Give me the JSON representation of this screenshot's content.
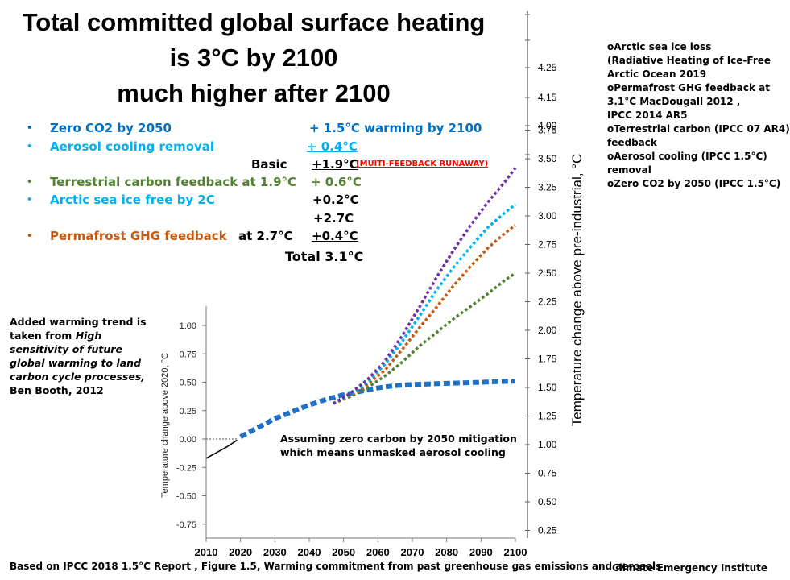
{
  "title": {
    "line1": "Total committed global surface heating",
    "line2": "is 3°C by 2100",
    "line3": "much higher after 2100"
  },
  "bullets": [
    {
      "label": "Zero CO2 by 2050",
      "value": "+ 1.5°C warming by 2100",
      "color": "#0070C0"
    },
    {
      "label": "Aerosol cooling removal",
      "value": "+ 0.4°C",
      "color": "#00B0F0"
    },
    {
      "label": "Terrestrial carbon feedback at 1.9°C",
      "value": "+ 0.6°C",
      "color": "#548235"
    },
    {
      "label": "Arctic sea ice free by 2C",
      "value": "+0.2°C",
      "color": "#00B0F0"
    },
    {
      "label": "Permafrost GHG  feedback",
      "at": "at 2.7°C",
      "value": "+0.4°C",
      "color": "#C55A11"
    }
  ],
  "basic": {
    "label": "Basic",
    "value": "+1.9°C",
    "note": "(MUlTI-FEEDBACK  RUNAWAY)",
    "note_color": "#FF0000"
  },
  "subtotal": "+2.7C",
  "total": "Total  3.1°C",
  "references": [
    "oArctic sea ice loss",
    " (Radiative Heating of Ice-Free",
    "Arctic Ocean 2019",
    "oPermafrost GHG  feedback at",
    "3.1°C MacDougall 2012 ,",
    " IPCC 2014  AR5",
    "oTerrestrial carbon (IPCC 07 AR4)",
    " feedback",
    "oAerosol cooling    (IPCC 1.5°C)",
    "removal",
    "oZero CO2 by 2050   (IPCC 1.5°C)"
  ],
  "side_note": {
    "normal": "Added warming trend is taken from ",
    "italic": "High sensitivity of future global  warming to land carbon cycle processes,",
    "author": " Ben Booth, 2012"
  },
  "annotation": {
    "line1": "Assuming zero carbon by 2050 mitigation",
    "line2": "which means unmasked aerosol cooling"
  },
  "footer": {
    "source": "Based on IPCC 2018   1.5°C Report , Figure 1.5, Warming commitment from past  greenhouse gas emissions  and aerosols",
    "credit": "Climate Emergency Institute"
  },
  "chart_data": {
    "type": "line",
    "xlabel": "",
    "left_ylabel": "Temperature change above 2020, °C",
    "right_ylabel": "Temperature change above pre-industrial, °C",
    "x_ticks": [
      "2010",
      "2020",
      "2030",
      "2040",
      "2050",
      "2060",
      "2070",
      "2080",
      "2090",
      "2100"
    ],
    "xlim": [
      2010,
      2100
    ],
    "left_y_ticks": [
      "1.00",
      "0.75",
      "0.50",
      "0.25",
      "0.00",
      "-0.25",
      "-0.50",
      "-0.75"
    ],
    "left_ylim": [
      -0.8,
      1.0
    ],
    "right_y_ticks": [
      "0.25",
      "0.50",
      "0.75",
      "1.00",
      "1.25",
      "1.50",
      "1.75",
      "2.00",
      "2.25",
      "2.50",
      "2.75",
      "3.00",
      "3.25",
      "3.50",
      "3.75",
      "4.00",
      "4.15",
      "4.25"
    ],
    "series": [
      {
        "color": "#000000",
        "style": "solid",
        "x": [
          2010,
          2013,
          2016,
          2019
        ],
        "y": [
          -0.17,
          -0.12,
          -0.07,
          -0.01
        ]
      },
      {
        "color": "#888888",
        "style": "dotted",
        "x": [
          2010,
          2019
        ],
        "y": [
          0.0,
          0.0
        ]
      },
      {
        "color": "#1F6FC5",
        "style": "dotted",
        "x": [
          2020,
          2025,
          2030,
          2035,
          2040,
          2045,
          2050,
          2055,
          2060,
          2065,
          2070,
          2075,
          2080,
          2085,
          2090,
          2095,
          2100
        ],
        "y": [
          0.02,
          0.1,
          0.18,
          0.24,
          0.3,
          0.35,
          0.39,
          0.42,
          0.45,
          0.47,
          0.48,
          0.485,
          0.49,
          0.495,
          0.5,
          0.505,
          0.51
        ]
      },
      {
        "color": "#548235",
        "style": "dotted",
        "x": [
          2047,
          2052,
          2057,
          2062,
          2067,
          2072,
          2077,
          2082,
          2087,
          2092,
          2097,
          2100
        ],
        "y": [
          1.36,
          1.42,
          1.5,
          1.6,
          1.72,
          1.86,
          1.98,
          2.1,
          2.21,
          2.32,
          2.44,
          2.5
        ]
      },
      {
        "color": "#C55A11",
        "style": "dotted",
        "x": [
          2047,
          2052,
          2057,
          2062,
          2067,
          2072,
          2077,
          2082,
          2087,
          2092,
          2097,
          2100
        ],
        "y": [
          1.36,
          1.43,
          1.53,
          1.65,
          1.83,
          2.02,
          2.2,
          2.39,
          2.56,
          2.72,
          2.85,
          2.92
        ]
      },
      {
        "color": "#00B0F0",
        "style": "dotted",
        "x": [
          2047,
          2052,
          2057,
          2062,
          2067,
          2072,
          2077,
          2082,
          2087,
          2092,
          2097,
          2100
        ],
        "y": [
          1.36,
          1.44,
          1.55,
          1.7,
          1.9,
          2.12,
          2.35,
          2.55,
          2.73,
          2.9,
          3.03,
          3.1
        ]
      },
      {
        "color": "#7030A0",
        "style": "dotted",
        "x": [
          2047,
          2052,
          2057,
          2062,
          2067,
          2072,
          2077,
          2082,
          2087,
          2092,
          2097,
          2100
        ],
        "y": [
          1.36,
          1.45,
          1.57,
          1.73,
          1.95,
          2.2,
          2.46,
          2.7,
          2.92,
          3.12,
          3.3,
          3.42
        ]
      }
    ]
  }
}
